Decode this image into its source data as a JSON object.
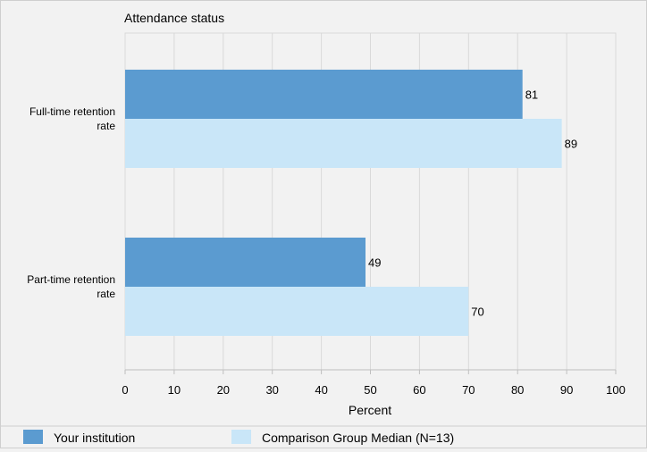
{
  "chart_data": {
    "type": "bar",
    "orientation": "horizontal",
    "title": "Attendance status",
    "categories": [
      [
        "Full-time retention",
        "rate"
      ],
      [
        "Part-time retention",
        "rate"
      ]
    ],
    "series": [
      {
        "name": "Your institution",
        "values": [
          81,
          49
        ],
        "color": "#5b9bd0"
      },
      {
        "name": "Comparison Group Median (N=13)",
        "values": [
          89,
          70
        ],
        "color": "#c9e6f8"
      }
    ],
    "xlabel": "Percent",
    "xlim": [
      0,
      100
    ],
    "xticks": [
      0,
      10,
      20,
      30,
      40,
      50,
      60,
      70,
      80,
      90,
      100
    ],
    "grid": true,
    "legend_position": "bottom"
  }
}
